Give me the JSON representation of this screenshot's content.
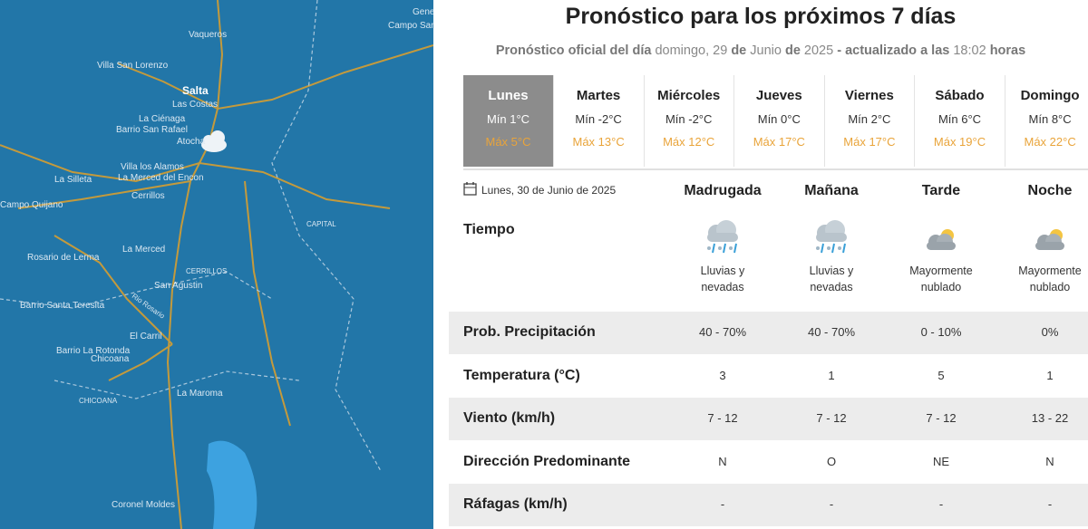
{
  "map": {
    "labels": [
      "Gene",
      "Campo Santa",
      "Vaqueros",
      "Villa San Lorenzo",
      "Salta",
      "Las Costas",
      "La Ciénaga",
      "Barrio San Rafael",
      "Atocha",
      "Villa los Alamos",
      "La Merced del Encon",
      "La Silleta",
      "Cerrillos",
      "Campo Quijano",
      "CAPITAL",
      "La Merced",
      "Rosario de Lerma",
      "CERRILLOS",
      "San Agustin",
      "Rio Rosario",
      "Barrio Santa Teresita",
      "El Carril",
      "Barrio La Rotonda",
      "Chicoana",
      "CHICOANA",
      "La Maroma",
      "Coronel Moldes"
    ]
  },
  "header": {
    "title": "Pronóstico para los próximos 7 días",
    "subtitle": [
      {
        "text": "Pronóstico oficial del día",
        "bold": true
      },
      {
        "text": "domingo, 29",
        "bold": false
      },
      {
        "text": "de",
        "bold": true
      },
      {
        "text": "Junio",
        "bold": false
      },
      {
        "text": "de",
        "bold": true
      },
      {
        "text": "2025",
        "bold": false
      },
      {
        "text": "- actualizado a las",
        "bold": true
      },
      {
        "text": "18:02",
        "bold": false
      },
      {
        "text": "horas",
        "bold": true
      }
    ]
  },
  "days": {
    "selected": 0,
    "items": [
      {
        "name": "Lunes",
        "min": "Mín 1°C",
        "max": "Máx 5°C"
      },
      {
        "name": "Martes",
        "min": "Mín -2°C",
        "max": "Máx 13°C"
      },
      {
        "name": "Miércoles",
        "min": "Mín -2°C",
        "max": "Máx 12°C"
      },
      {
        "name": "Jueves",
        "min": "Mín 0°C",
        "max": "Máx 17°C"
      },
      {
        "name": "Viernes",
        "min": "Mín 2°C",
        "max": "Máx 17°C"
      },
      {
        "name": "Sábado",
        "min": "Mín 6°C",
        "max": "Máx 19°C"
      },
      {
        "name": "Domingo",
        "min": "Mín 8°C",
        "max": "Máx 22°C"
      }
    ]
  },
  "detail": {
    "date": "Lunes, 30 de Junio de 2025",
    "periods": [
      "Madrugada",
      "Mañana",
      "Tarde",
      "Noche"
    ],
    "weather_label": "Tiempo",
    "weather": [
      [
        "Lluvias y",
        "nevadas"
      ],
      [
        "Lluvias y",
        "nevadas"
      ],
      [
        "Mayormente",
        "nublado"
      ],
      [
        "Mayormente",
        "nublado"
      ]
    ],
    "rows": [
      {
        "label": "Prob. Precipitación",
        "values": [
          "40 - 70%",
          "40 - 70%",
          "0 - 10%",
          "0%"
        ]
      },
      {
        "label": "Temperatura (°C)",
        "values": [
          3,
          1,
          5,
          1
        ]
      },
      {
        "label": "Viento (km/h)",
        "values": [
          "7 - 12",
          "7 - 12",
          "7 - 12",
          "13 - 22"
        ]
      },
      {
        "label": "Dirección Predominante",
        "values": [
          "N",
          "O",
          "NE",
          "N"
        ]
      },
      {
        "label": "Ráfagas (km/h)",
        "values": [
          "-",
          "-",
          "-",
          "-"
        ]
      }
    ]
  }
}
